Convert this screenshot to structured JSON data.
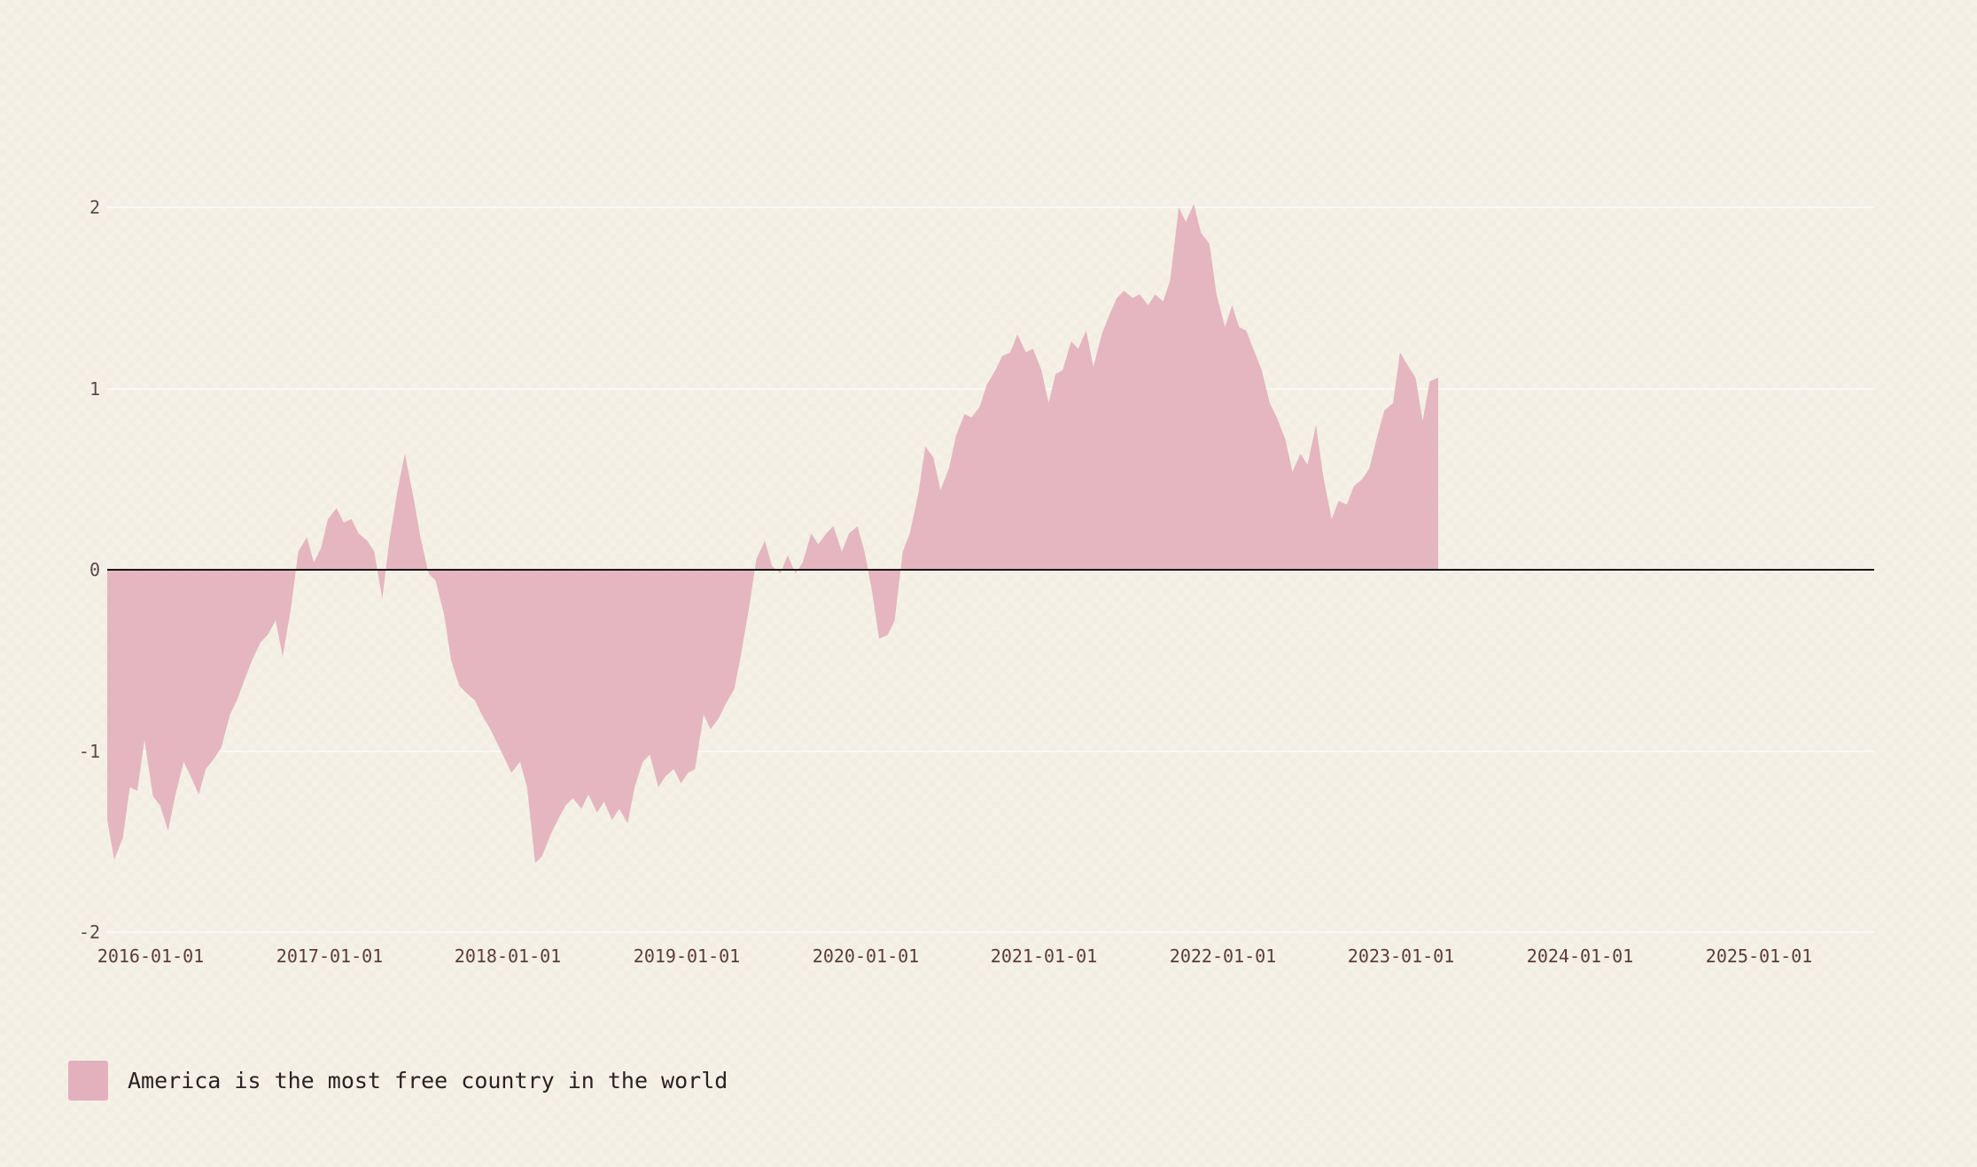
{
  "colors": {
    "series_fill": "#e3b1bd",
    "zero_line": "#1c1416",
    "grid_line": "#ffffff"
  },
  "legend": {
    "label": "America is the most free country in the world"
  },
  "chart_data": {
    "type": "area",
    "title": "",
    "xlabel": "",
    "ylabel": "",
    "ylim": [
      -2,
      2
    ],
    "xlim": [
      "2016-01-01",
      "2025-08-15"
    ],
    "y_ticks": [
      "2",
      "1",
      "0",
      "-1",
      "-2"
    ],
    "x_ticks": [
      "2016-01-01",
      "2017-01-01",
      "2018-01-01",
      "2019-01-01",
      "2020-01-01",
      "2021-01-01",
      "2022-01-01",
      "2023-01-01",
      "2024-01-01",
      "2025-01-01"
    ],
    "grid": true,
    "legend_position": "bottom-left",
    "series": [
      {
        "name": "America is the most free country in the world",
        "points": [
          [
            "2016-01-01",
            -1.38
          ],
          [
            "2016-01-15",
            -1.6
          ],
          [
            "2016-02-01",
            -1.48
          ],
          [
            "2016-02-15",
            -1.2
          ],
          [
            "2016-03-01",
            -1.22
          ],
          [
            "2016-03-15",
            -0.94
          ],
          [
            "2016-04-01",
            -1.25
          ],
          [
            "2016-04-15",
            -1.3
          ],
          [
            "2016-05-01",
            -1.44
          ],
          [
            "2016-05-15",
            -1.25
          ],
          [
            "2016-06-01",
            -1.06
          ],
          [
            "2016-06-15",
            -1.14
          ],
          [
            "2016-07-01",
            -1.24
          ],
          [
            "2016-07-15",
            -1.1
          ],
          [
            "2016-08-01",
            -1.04
          ],
          [
            "2016-08-15",
            -0.98
          ],
          [
            "2016-09-01",
            -0.8
          ],
          [
            "2016-09-15",
            -0.72
          ],
          [
            "2016-10-01",
            -0.6
          ],
          [
            "2016-10-15",
            -0.5
          ],
          [
            "2016-11-01",
            -0.4
          ],
          [
            "2016-11-15",
            -0.36
          ],
          [
            "2016-12-01",
            -0.28
          ],
          [
            "2016-12-15",
            -0.48
          ],
          [
            "2017-01-01",
            -0.2
          ],
          [
            "2017-01-15",
            0.1
          ],
          [
            "2017-02-01",
            0.18
          ],
          [
            "2017-02-15",
            0.04
          ],
          [
            "2017-03-01",
            0.12
          ],
          [
            "2017-03-15",
            0.28
          ],
          [
            "2017-04-01",
            0.34
          ],
          [
            "2017-04-15",
            0.26
          ],
          [
            "2017-05-01",
            0.28
          ],
          [
            "2017-05-15",
            0.2
          ],
          [
            "2017-06-01",
            0.16
          ],
          [
            "2017-06-15",
            0.1
          ],
          [
            "2017-07-01",
            -0.16
          ],
          [
            "2017-07-15",
            0.16
          ],
          [
            "2017-08-01",
            0.45
          ],
          [
            "2017-08-15",
            0.64
          ],
          [
            "2017-09-01",
            0.4
          ],
          [
            "2017-09-15",
            0.18
          ],
          [
            "2017-10-01",
            -0.02
          ],
          [
            "2017-10-15",
            -0.06
          ],
          [
            "2017-11-01",
            -0.25
          ],
          [
            "2017-11-15",
            -0.5
          ],
          [
            "2017-12-01",
            -0.64
          ],
          [
            "2017-12-15",
            -0.68
          ],
          [
            "2018-01-01",
            -0.72
          ],
          [
            "2018-01-15",
            -0.8
          ],
          [
            "2018-02-01",
            -0.88
          ],
          [
            "2018-02-15",
            -0.96
          ],
          [
            "2018-03-01",
            -1.04
          ],
          [
            "2018-03-15",
            -1.12
          ],
          [
            "2018-04-01",
            -1.06
          ],
          [
            "2018-04-15",
            -1.2
          ],
          [
            "2018-05-01",
            -1.62
          ],
          [
            "2018-05-15",
            -1.58
          ],
          [
            "2018-06-01",
            -1.46
          ],
          [
            "2018-06-15",
            -1.38
          ],
          [
            "2018-07-01",
            -1.3
          ],
          [
            "2018-07-15",
            -1.26
          ],
          [
            "2018-08-01",
            -1.32
          ],
          [
            "2018-08-15",
            -1.24
          ],
          [
            "2018-09-01",
            -1.34
          ],
          [
            "2018-09-15",
            -1.28
          ],
          [
            "2018-10-01",
            -1.38
          ],
          [
            "2018-10-15",
            -1.32
          ],
          [
            "2018-11-01",
            -1.4
          ],
          [
            "2018-11-15",
            -1.2
          ],
          [
            "2018-12-01",
            -1.06
          ],
          [
            "2018-12-15",
            -1.02
          ],
          [
            "2019-01-01",
            -1.2
          ],
          [
            "2019-01-15",
            -1.14
          ],
          [
            "2019-02-01",
            -1.1
          ],
          [
            "2019-02-15",
            -1.18
          ],
          [
            "2019-03-01",
            -1.12
          ],
          [
            "2019-03-15",
            -1.1
          ],
          [
            "2019-04-01",
            -0.8
          ],
          [
            "2019-04-15",
            -0.88
          ],
          [
            "2019-05-01",
            -0.82
          ],
          [
            "2019-05-15",
            -0.74
          ],
          [
            "2019-06-01",
            -0.66
          ],
          [
            "2019-06-15",
            -0.46
          ],
          [
            "2019-07-01",
            -0.2
          ],
          [
            "2019-07-15",
            0.06
          ],
          [
            "2019-08-01",
            0.16
          ],
          [
            "2019-08-15",
            0.02
          ],
          [
            "2019-09-01",
            -0.02
          ],
          [
            "2019-09-15",
            0.08
          ],
          [
            "2019-10-01",
            -0.02
          ],
          [
            "2019-10-15",
            0.04
          ],
          [
            "2019-11-01",
            0.2
          ],
          [
            "2019-11-15",
            0.14
          ],
          [
            "2019-12-01",
            0.2
          ],
          [
            "2019-12-15",
            0.24
          ],
          [
            "2020-01-01",
            0.1
          ],
          [
            "2020-01-15",
            0.2
          ],
          [
            "2020-02-01",
            0.24
          ],
          [
            "2020-02-15",
            0.1
          ],
          [
            "2020-03-01",
            -0.12
          ],
          [
            "2020-03-15",
            -0.38
          ],
          [
            "2020-04-01",
            -0.36
          ],
          [
            "2020-04-15",
            -0.28
          ],
          [
            "2020-05-01",
            0.1
          ],
          [
            "2020-05-15",
            0.2
          ],
          [
            "2020-06-01",
            0.42
          ],
          [
            "2020-06-15",
            0.68
          ],
          [
            "2020-07-01",
            0.62
          ],
          [
            "2020-07-15",
            0.44
          ],
          [
            "2020-08-01",
            0.56
          ],
          [
            "2020-08-15",
            0.74
          ],
          [
            "2020-09-01",
            0.86
          ],
          [
            "2020-09-15",
            0.84
          ],
          [
            "2020-10-01",
            0.9
          ],
          [
            "2020-10-15",
            1.02
          ],
          [
            "2020-11-01",
            1.1
          ],
          [
            "2020-11-15",
            1.18
          ],
          [
            "2020-12-01",
            1.2
          ],
          [
            "2020-12-15",
            1.3
          ],
          [
            "2021-01-01",
            1.2
          ],
          [
            "2021-01-15",
            1.22
          ],
          [
            "2021-02-01",
            1.1
          ],
          [
            "2021-02-15",
            0.92
          ],
          [
            "2021-03-01",
            1.08
          ],
          [
            "2021-03-15",
            1.1
          ],
          [
            "2021-04-01",
            1.26
          ],
          [
            "2021-04-15",
            1.22
          ],
          [
            "2021-05-01",
            1.32
          ],
          [
            "2021-05-15",
            1.12
          ],
          [
            "2021-06-01",
            1.3
          ],
          [
            "2021-06-15",
            1.4
          ],
          [
            "2021-07-01",
            1.5
          ],
          [
            "2021-07-15",
            1.54
          ],
          [
            "2021-08-01",
            1.5
          ],
          [
            "2021-08-15",
            1.52
          ],
          [
            "2021-09-01",
            1.46
          ],
          [
            "2021-09-15",
            1.52
          ],
          [
            "2021-10-01",
            1.48
          ],
          [
            "2021-10-15",
            1.6
          ],
          [
            "2021-11-01",
            2.0
          ],
          [
            "2021-11-15",
            1.92
          ],
          [
            "2021-12-01",
            2.02
          ],
          [
            "2021-12-15",
            1.86
          ],
          [
            "2022-01-01",
            1.8
          ],
          [
            "2022-01-15",
            1.52
          ],
          [
            "2022-02-01",
            1.34
          ],
          [
            "2022-02-15",
            1.46
          ],
          [
            "2022-03-01",
            1.34
          ],
          [
            "2022-03-15",
            1.32
          ],
          [
            "2022-04-01",
            1.2
          ],
          [
            "2022-04-15",
            1.1
          ],
          [
            "2022-05-01",
            0.92
          ],
          [
            "2022-05-15",
            0.84
          ],
          [
            "2022-06-01",
            0.72
          ],
          [
            "2022-06-15",
            0.54
          ],
          [
            "2022-07-01",
            0.64
          ],
          [
            "2022-07-15",
            0.58
          ],
          [
            "2022-08-01",
            0.8
          ],
          [
            "2022-08-15",
            0.52
          ],
          [
            "2022-09-01",
            0.28
          ],
          [
            "2022-09-15",
            0.38
          ],
          [
            "2022-10-01",
            0.36
          ],
          [
            "2022-10-15",
            0.46
          ],
          [
            "2022-11-01",
            0.5
          ],
          [
            "2022-11-15",
            0.56
          ],
          [
            "2022-12-01",
            0.74
          ],
          [
            "2022-12-15",
            0.88
          ],
          [
            "2023-01-01",
            0.92
          ],
          [
            "2023-01-15",
            1.2
          ],
          [
            "2023-02-01",
            1.12
          ],
          [
            "2023-02-15",
            1.06
          ],
          [
            "2023-03-01",
            0.82
          ],
          [
            "2023-03-15",
            1.04
          ],
          [
            "2023-04-01",
            1.06
          ]
        ]
      }
    ]
  }
}
